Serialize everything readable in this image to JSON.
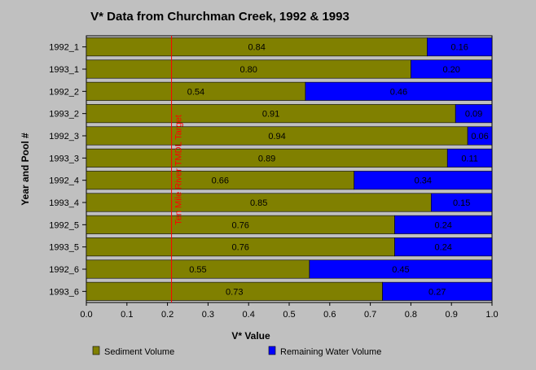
{
  "chart_data": {
    "type": "bar",
    "orientation": "horizontal",
    "stacked": true,
    "title": "V* Data from Churchman Creek, 1992 & 1993",
    "xlabel": "V* Value",
    "ylabel": "Year and Pool #",
    "xlim": [
      0,
      1.0
    ],
    "xticks": [
      "0.0",
      "0.1",
      "0.2",
      "0.3",
      "0.4",
      "0.5",
      "0.6",
      "0.7",
      "0.8",
      "0.9",
      "1.0"
    ],
    "categories": [
      "1992_1",
      "1993_1",
      "1992_2",
      "1993_2",
      "1992_3",
      "1993_3",
      "1992_4",
      "1993_4",
      "1992_5",
      "1993_5",
      "1992_6",
      "1993_6"
    ],
    "series": [
      {
        "name": "Sediment Volume",
        "color": "#808000",
        "values": [
          0.84,
          0.8,
          0.54,
          0.91,
          0.94,
          0.89,
          0.66,
          0.85,
          0.76,
          0.76,
          0.55,
          0.73
        ],
        "labels": [
          "0.84",
          "0.80",
          "0.54",
          "0.91",
          "0.94",
          "0.89",
          "0.66",
          "0.85",
          "0.76",
          "0.76",
          "0.55",
          "0.73"
        ]
      },
      {
        "name": "Remaining Water Volume",
        "color": "#0000ff",
        "values": [
          0.16,
          0.2,
          0.46,
          0.09,
          0.06,
          0.11,
          0.34,
          0.15,
          0.24,
          0.24,
          0.45,
          0.27
        ],
        "labels": [
          "0.16",
          "0.20",
          "0.46",
          "0.09",
          "0.06",
          "0.11",
          "0.34",
          "0.15",
          "0.24",
          "0.24",
          "0.45",
          "0.27"
        ]
      }
    ],
    "reference_line": {
      "value": 0.21,
      "label": "Ten Mile River TMDL Target",
      "color": "#ff0000"
    },
    "legend_position": "bottom",
    "plot_background": "#c0c0c0",
    "grid": false
  }
}
